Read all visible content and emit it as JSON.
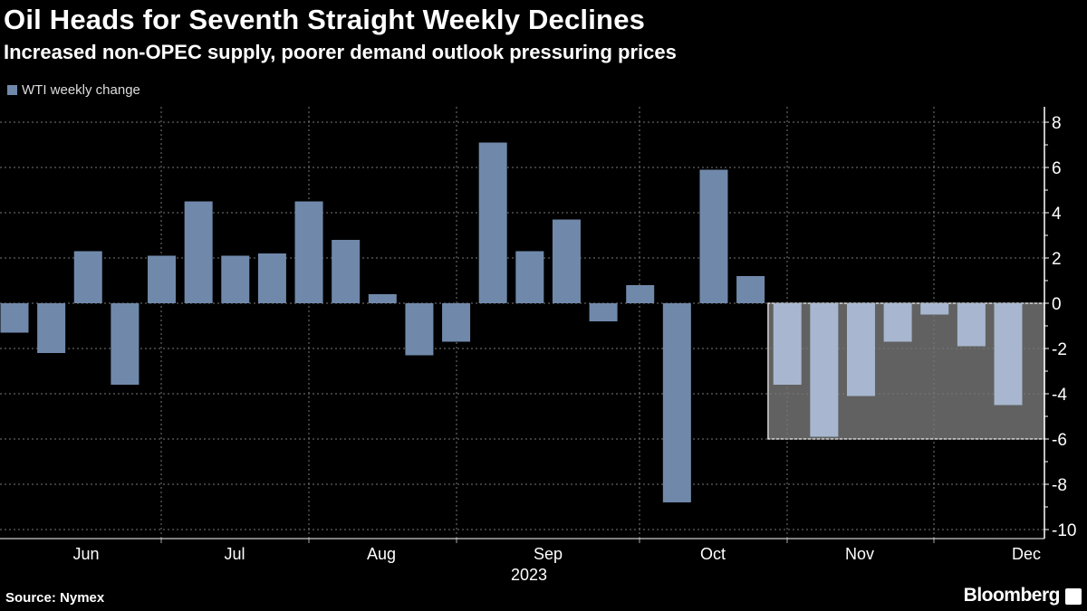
{
  "title": "Oil Heads for Seventh Straight Weekly Declines",
  "subtitle": "Increased non-OPEC supply, poorer demand outlook pressuring prices",
  "source": "Source: Nymex",
  "brand": "Bloomberg",
  "colors": {
    "bar": "#7089ab",
    "highlight_bar": "#a8b7cf",
    "highlight_bg": "#616161",
    "background": "#000000"
  },
  "chart_data": {
    "type": "bar",
    "title": "Oil Heads for Seventh Straight Weekly Declines",
    "subtitle": "Increased non-OPEC supply, poorer demand outlook pressuring prices",
    "series": [
      {
        "name": "WTI weekly change",
        "values": [
          -1.3,
          -2.2,
          2.3,
          -3.6,
          2.1,
          4.5,
          2.1,
          2.2,
          4.5,
          2.8,
          0.4,
          -2.3,
          -1.7,
          7.1,
          2.3,
          3.7,
          -0.8,
          0.8,
          -8.8,
          5.9,
          1.2,
          -3.6,
          -5.9,
          -4.1,
          -1.7,
          -0.5,
          -1.9,
          -4.5
        ]
      }
    ],
    "highlighted_last": 7,
    "x_tick_labels": [
      "Jun",
      "Jul",
      "Aug",
      "Sep",
      "Oct",
      "Nov",
      "Dec"
    ],
    "x_year_label": "2023",
    "y_ticks": [
      8,
      6,
      4,
      2,
      0,
      -2,
      -4,
      -6,
      -8,
      -10
    ],
    "ylim": [
      -10.2,
      8.6
    ],
    "y_axis_position": "right",
    "grid": true,
    "legend": "top-left"
  }
}
